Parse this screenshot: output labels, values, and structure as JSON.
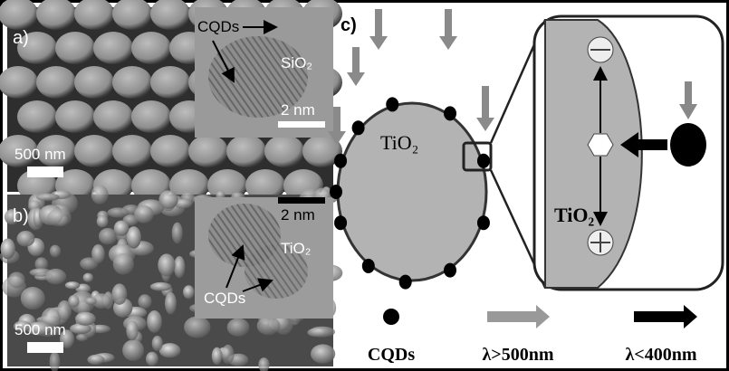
{
  "panel_a": {
    "label": "a)",
    "inset_arrow_label": "CQDs",
    "inset_material": "SiO₂",
    "inset_scale": "2 nm",
    "scale": "500 nm"
  },
  "panel_b": {
    "label": "b)",
    "inset_scale": "2 nm",
    "inset_material": "TiO₂",
    "inset_arrow_label": "CQDs",
    "scale": "500 nm"
  },
  "panel_c": {
    "label": "c)",
    "sphere_label": "TiO₂",
    "zoom_label": "TiO₂",
    "legend": [
      "CQDs",
      "λ>500nm",
      "λ<400nm"
    ]
  }
}
